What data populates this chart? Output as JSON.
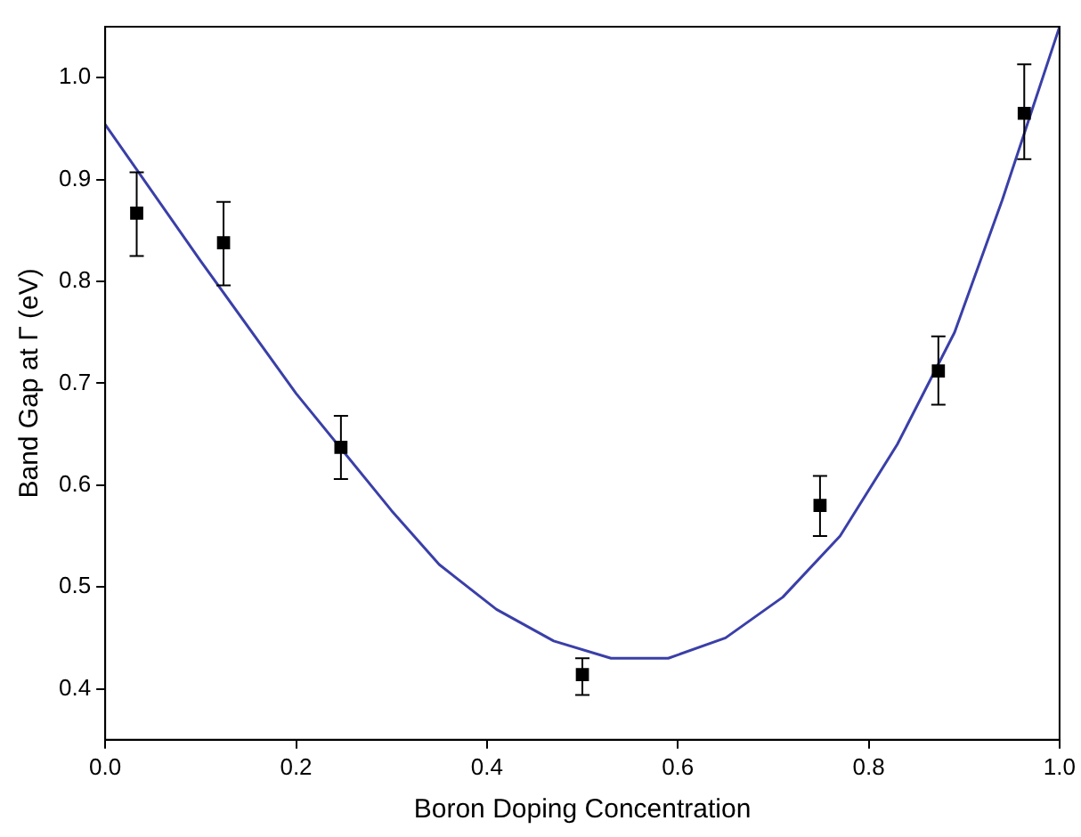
{
  "chart_data": {
    "type": "scatter",
    "xlabel": "Boron Doping Concentration",
    "ylabel": "Band Gap at Γ (eV)",
    "xlim": [
      0,
      1
    ],
    "ylim": [
      0.35,
      1.05
    ],
    "xticks": [
      {
        "value": 0,
        "label": "0.0"
      },
      0.2,
      0.4,
      0.6,
      0.8,
      {
        "value": 1,
        "label": "1.0"
      }
    ],
    "yticks": [
      {
        "value": 0.4,
        "label": "0.4"
      },
      {
        "value": 0.5,
        "label": "0.5"
      },
      {
        "value": 0.6,
        "label": "0.6"
      },
      {
        "value": 0.7,
        "label": "0.7"
      },
      {
        "value": 0.8,
        "label": "0.8"
      },
      {
        "value": 0.9,
        "label": "0.9"
      },
      {
        "value": 1,
        "label": "1.0"
      }
    ],
    "grid": false,
    "legend": false,
    "series": [
      {
        "type": "scatter",
        "color": "#000000",
        "marker": "square",
        "x": [
          0.033,
          0.124,
          0.247,
          0.5,
          0.749,
          0.873,
          0.963
        ],
        "values": [
          0.867,
          0.838,
          0.637,
          0.414,
          0.58,
          0.712,
          0.965
        ],
        "errors": [
          [
            0.825,
            0.907
          ],
          [
            0.796,
            0.878
          ],
          [
            0.606,
            0.668
          ],
          [
            0.394,
            0.43
          ],
          [
            0.55,
            0.609
          ],
          [
            0.679,
            0.746
          ],
          [
            0.92,
            1.013
          ]
        ]
      },
      {
        "type": "line",
        "color": "#3a3fa8",
        "marker": "none",
        "line_style": "solid",
        "x": [
          0,
          0.1,
          0.2,
          0.3,
          0.35,
          0.41,
          0.47,
          0.53,
          0.59,
          0.65,
          0.71,
          0.77,
          0.83,
          0.89,
          0.94,
          1
        ],
        "values": [
          0.954,
          0.82,
          0.69,
          0.575,
          0.522,
          0.478,
          0.447,
          0.43,
          0.43,
          0.45,
          0.49,
          0.55,
          0.64,
          0.75,
          0.88,
          1.05
        ]
      }
    ]
  }
}
